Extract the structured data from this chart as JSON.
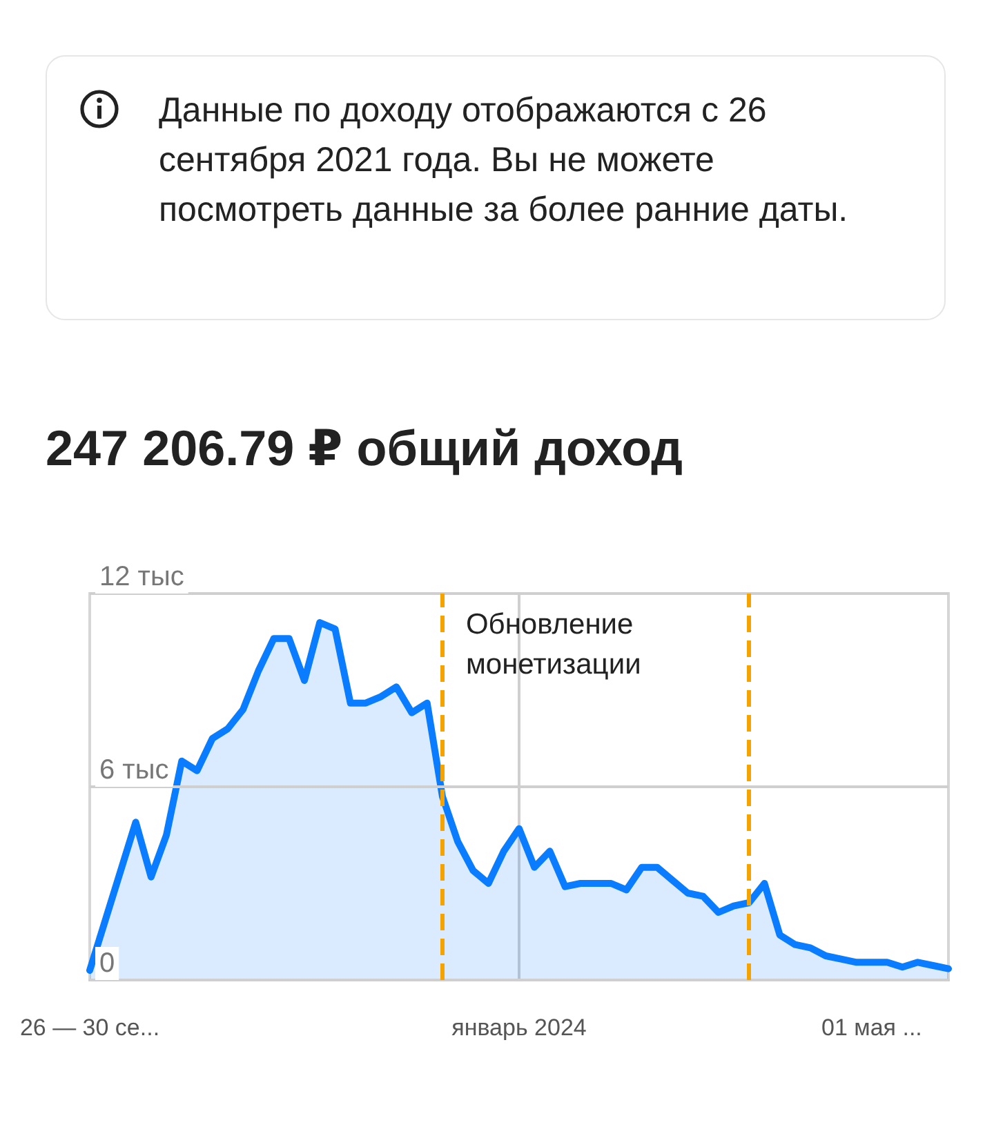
{
  "chart_data": {
    "type": "area",
    "title": "247 206.79 ₽ общий доход",
    "annotations": [
      "Данные по доходу отображаются с 26 сентября 2021 года. Вы не можете посмотреть данные за более ранние даты.",
      "Обновление монетизации"
    ],
    "categories": [
      "26 — 30 се...",
      null,
      null,
      null,
      null,
      null,
      null,
      null,
      null,
      null,
      null,
      null,
      null,
      null,
      null,
      null,
      null,
      null,
      null,
      null,
      null,
      null,
      null,
      null,
      null,
      null,
      null,
      null,
      "январь 2024",
      null,
      null,
      null,
      null,
      null,
      null,
      null,
      null,
      null,
      null,
      null,
      null,
      null,
      null,
      null,
      null,
      null,
      null,
      null,
      null,
      null,
      null,
      "01 мая ...",
      null,
      null,
      null,
      null,
      null
    ],
    "series": [
      {
        "color": "#0a7cff",
        "values": [
          0.3,
          null,
          null,
          4.9,
          3.2,
          4.5,
          6.8,
          6.5,
          7.5,
          7.8,
          8.4,
          9.6,
          10.6,
          10.6,
          9.3,
          11.1,
          10.9,
          8.6,
          8.6,
          8.8,
          9.1,
          8.3,
          8.6,
          5.7,
          4.3,
          3.4,
          3.0,
          4.0,
          4.7,
          3.5,
          4.0,
          2.9,
          3.0,
          3.0,
          3.0,
          2.8,
          3.5,
          3.5,
          3.1,
          2.7,
          2.6,
          2.1,
          2.3,
          2.4,
          3.0,
          1.4,
          1.1,
          1.0,
          0.75,
          0.65,
          0.55,
          0.55,
          0.55,
          0.4,
          0.55,
          0.45,
          0.35
        ]
      }
    ],
    "ylim": [
      0,
      12
    ],
    "yticks": [
      {
        "value": 0,
        "label": "0"
      },
      {
        "value": 6,
        "label": "6 тыс"
      },
      {
        "value": 12,
        "label": "12 тыс"
      }
    ],
    "grid": true,
    "marker": "none",
    "line_style": "solid"
  }
}
